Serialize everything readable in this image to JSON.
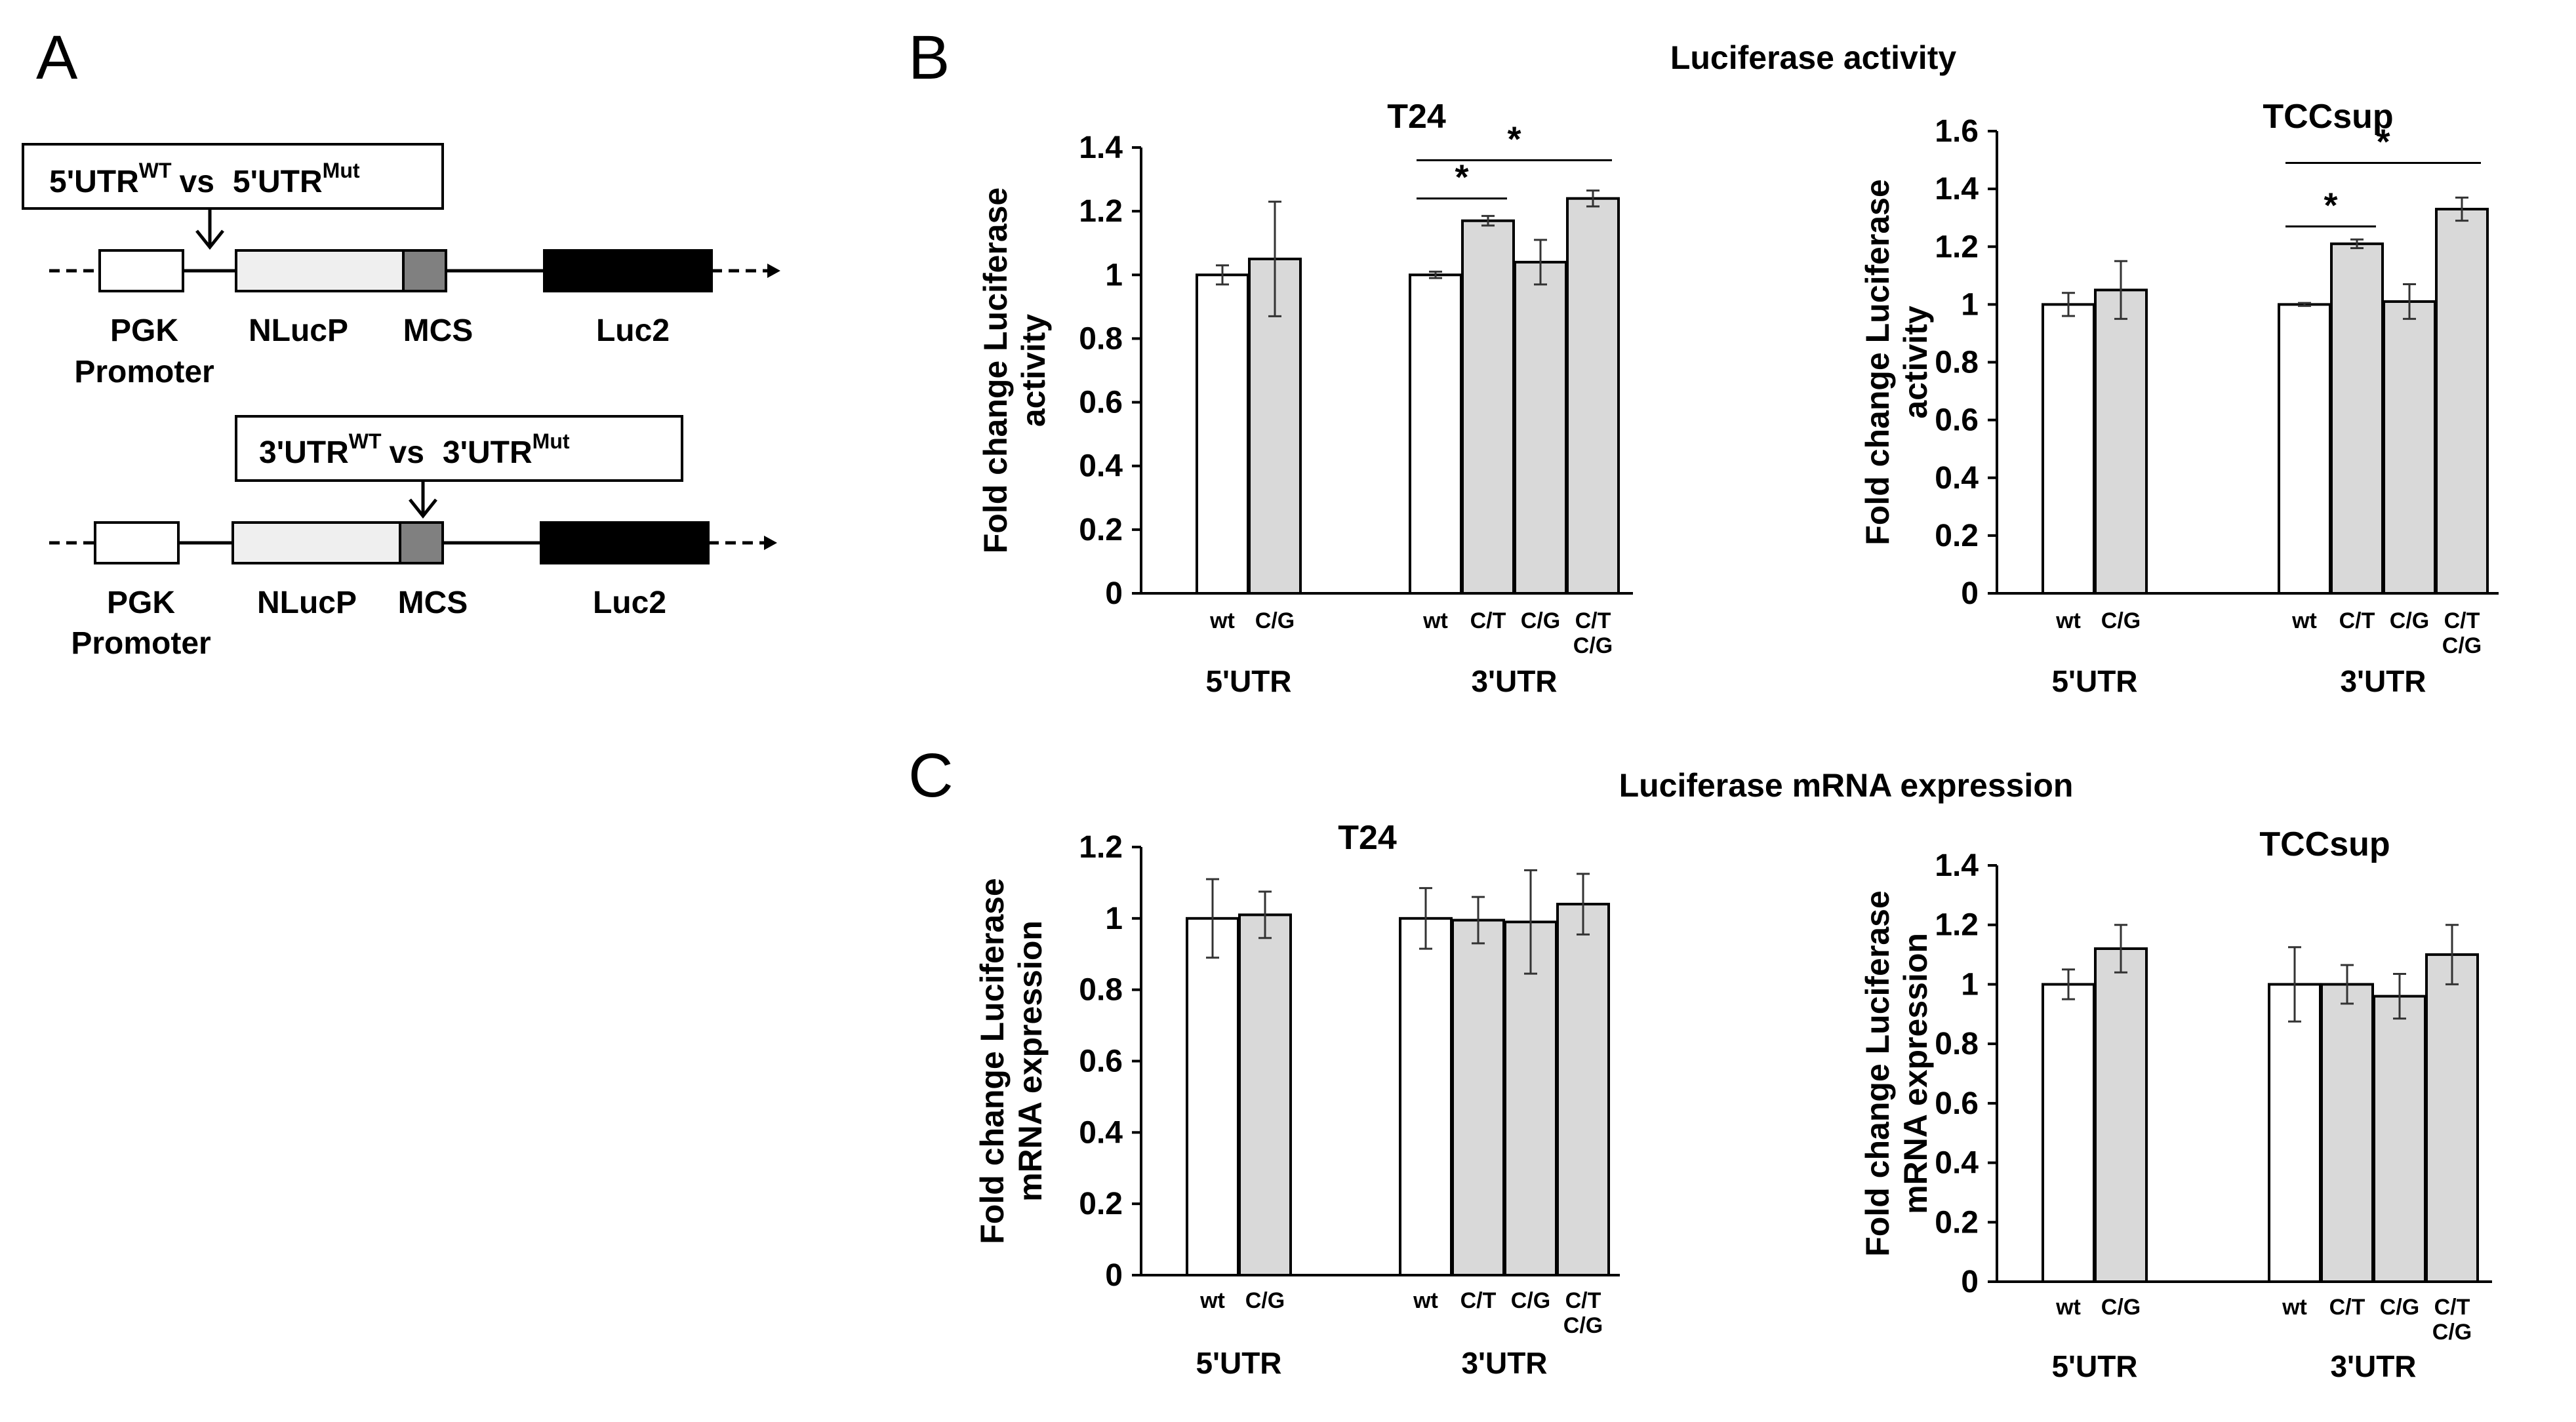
{
  "panel_labels": {
    "a": "A",
    "b": "B",
    "c": "C"
  },
  "colors": {
    "wt": "#ffffff",
    "mut": "#d9d9d9",
    "stroke": "#000000",
    "nlucp": "#efefef",
    "mcs": "#808080",
    "luc2": "#000000"
  },
  "diagram": {
    "utr5": {
      "box_main": "5'UTR",
      "box_sup1": "WT",
      "box_vs": "vs",
      "box_main2": "5'UTR",
      "box_sup2": "Mut"
    },
    "utr3": {
      "box_main": "3'UTR",
      "box_sup1": "WT",
      "box_vs": "vs",
      "box_main2": "3'UTR",
      "box_sup2": "Mut"
    },
    "labels": {
      "pgk1": "PGK",
      "pgk2": "Promoter",
      "nlucp": "NLucP",
      "mcs": "MCS",
      "luc2": "Luc2"
    }
  },
  "sections": {
    "b_title": "Luciferase activity",
    "c_title": "Luciferase mRNA expression"
  },
  "chart_data": [
    {
      "id": "b1",
      "type": "bar",
      "title": "T24",
      "ylabel": [
        "Fold change Luciferase",
        "activity"
      ],
      "ylim": [
        0,
        1.4
      ],
      "yticks": [
        "0",
        "0.2",
        "0.4",
        "0.6",
        "0.8",
        "1",
        "1.2",
        "1.4"
      ],
      "groups": [
        {
          "name": "5'UTR",
          "bars": [
            {
              "label": "wt",
              "value": 1.0,
              "error": 0.03,
              "kind": "wt"
            },
            {
              "label": "C/G",
              "value": 1.05,
              "error": 0.18,
              "kind": "mut"
            }
          ]
        },
        {
          "name": "3'UTR",
          "bars": [
            {
              "label": "wt",
              "value": 1.0,
              "error": 0.01,
              "kind": "wt"
            },
            {
              "label": "C/T",
              "value": 1.17,
              "error": 0.015,
              "kind": "mut"
            },
            {
              "label": "C/G",
              "value": 1.04,
              "error": 0.07,
              "kind": "mut"
            },
            {
              "label": "C/T C/G",
              "value": 1.24,
              "error": 0.025,
              "kind": "mut"
            }
          ]
        }
      ],
      "significance": [
        {
          "from": [
            1,
            0
          ],
          "to": [
            1,
            1
          ],
          "y": 1.24,
          "label": "*"
        },
        {
          "from": [
            1,
            0
          ],
          "to": [
            1,
            3
          ],
          "y": 1.36,
          "label": "*"
        }
      ]
    },
    {
      "id": "b2",
      "type": "bar",
      "title": "TCCsup",
      "ylabel": [
        "Fold change Luciferase",
        "activity"
      ],
      "ylim": [
        0,
        1.6
      ],
      "yticks": [
        "0",
        "0.2",
        "0.4",
        "0.6",
        "0.8",
        "1",
        "1.2",
        "1.4",
        "1.6"
      ],
      "groups": [
        {
          "name": "5'UTR",
          "bars": [
            {
              "label": "wt",
              "value": 1.0,
              "error": 0.04,
              "kind": "wt"
            },
            {
              "label": "C/G",
              "value": 1.05,
              "error": 0.1,
              "kind": "mut"
            }
          ]
        },
        {
          "name": "3'UTR",
          "bars": [
            {
              "label": "wt",
              "value": 1.0,
              "error": 0.005,
              "kind": "wt"
            },
            {
              "label": "C/T",
              "value": 1.21,
              "error": 0.015,
              "kind": "mut"
            },
            {
              "label": "C/G",
              "value": 1.01,
              "error": 0.06,
              "kind": "mut"
            },
            {
              "label": "C/T C/G",
              "value": 1.33,
              "error": 0.04,
              "kind": "mut"
            }
          ]
        }
      ],
      "significance": [
        {
          "from": [
            1,
            0
          ],
          "to": [
            1,
            1
          ],
          "y": 1.27,
          "label": "*"
        },
        {
          "from": [
            1,
            0
          ],
          "to": [
            1,
            3
          ],
          "y": 1.49,
          "label": "*"
        }
      ]
    },
    {
      "id": "c1",
      "type": "bar",
      "title": "T24",
      "ylabel": [
        "Fold change Luciferase",
        "mRNA expression"
      ],
      "ylim": [
        0,
        1.2
      ],
      "yticks": [
        "0",
        "0.2",
        "0.4",
        "0.6",
        "0.8",
        "1",
        "1.2"
      ],
      "groups": [
        {
          "name": "5'UTR",
          "bars": [
            {
              "label": "wt",
              "value": 1.0,
              "error": 0.11,
              "kind": "wt"
            },
            {
              "label": "C/G",
              "value": 1.01,
              "error": 0.065,
              "kind": "mut"
            }
          ]
        },
        {
          "name": "3'UTR",
          "bars": [
            {
              "label": "wt",
              "value": 1.0,
              "error": 0.085,
              "kind": "wt"
            },
            {
              "label": "C/T",
              "value": 0.995,
              "error": 0.065,
              "kind": "mut"
            },
            {
              "label": "C/G",
              "value": 0.99,
              "error": 0.145,
              "kind": "mut"
            },
            {
              "label": "C/T C/G",
              "value": 1.04,
              "error": 0.085,
              "kind": "mut"
            }
          ]
        }
      ],
      "significance": []
    },
    {
      "id": "c2",
      "type": "bar",
      "title": "TCCsup",
      "ylabel": [
        "Fold change Luciferase",
        "mRNA expression"
      ],
      "ylim": [
        0,
        1.4
      ],
      "yticks": [
        "0",
        "0.2",
        "0.4",
        "0.6",
        "0.8",
        "1",
        "1.2",
        "1.4"
      ],
      "groups": [
        {
          "name": "5'UTR",
          "bars": [
            {
              "label": "wt",
              "value": 1.0,
              "error": 0.05,
              "kind": "wt"
            },
            {
              "label": "C/G",
              "value": 1.12,
              "error": 0.08,
              "kind": "mut"
            }
          ]
        },
        {
          "name": "3'UTR",
          "bars": [
            {
              "label": "wt",
              "value": 1.0,
              "error": 0.125,
              "kind": "wt"
            },
            {
              "label": "C/T",
              "value": 1.0,
              "error": 0.065,
              "kind": "mut"
            },
            {
              "label": "C/G",
              "value": 0.96,
              "error": 0.075,
              "kind": "mut"
            },
            {
              "label": "C/T C/G",
              "value": 1.1,
              "error": 0.1,
              "kind": "mut"
            }
          ]
        }
      ],
      "significance": []
    }
  ]
}
